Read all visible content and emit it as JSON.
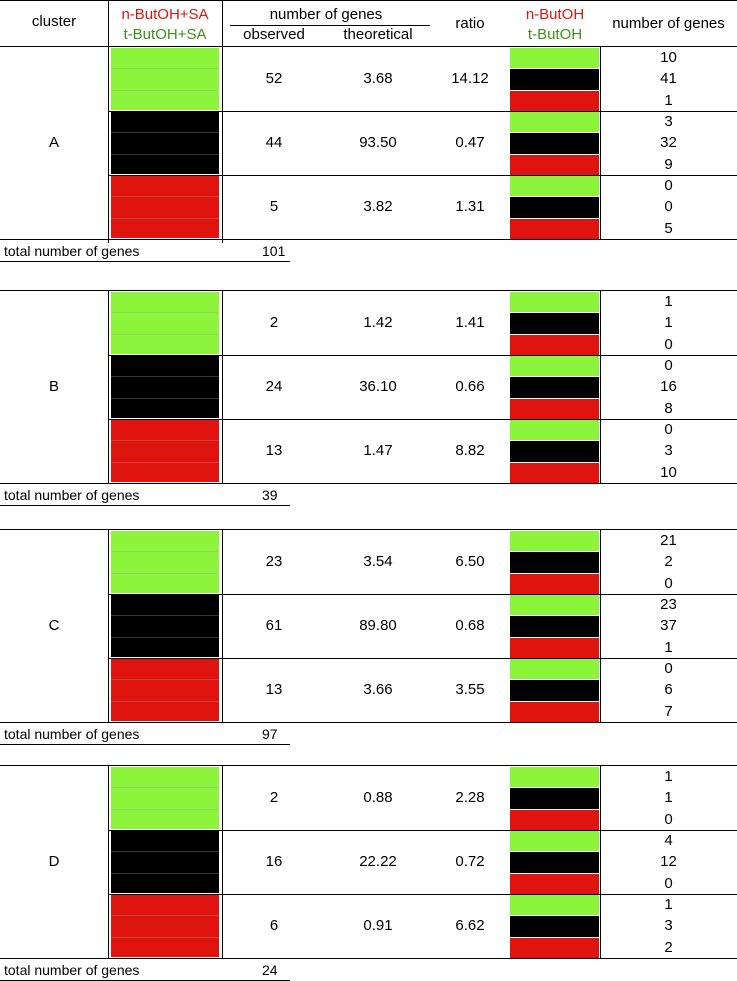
{
  "header": {
    "cluster": "cluster",
    "combo_top": "n-ButOH+SA",
    "combo_bottom": "t-ButOH+SA",
    "number_of_genes": "number of genes",
    "observed": "observed",
    "theoretical": "theoretical",
    "ratio": "ratio",
    "single_top": "n-ButOH",
    "single_bottom": "t-ButOH",
    "number_of_genes_right": "number of genes"
  },
  "colors": {
    "green": "#8cf53b",
    "black": "#000000",
    "red": "#e0140f"
  },
  "clusters": [
    {
      "name": "A",
      "total_label": "total number of genes",
      "total": "101",
      "groups": [
        {
          "color": "green",
          "observed": "52",
          "theoretical": "3.68",
          "ratio": "14.12",
          "counts": [
            "10",
            "41",
            "1"
          ]
        },
        {
          "color": "black",
          "observed": "44",
          "theoretical": "93.50",
          "ratio": "0.47",
          "counts": [
            "3",
            "32",
            "9"
          ]
        },
        {
          "color": "red",
          "observed": "5",
          "theoretical": "3.82",
          "ratio": "1.31",
          "counts": [
            "0",
            "0",
            "5"
          ]
        }
      ]
    },
    {
      "name": "B",
      "total_label": "total number of genes",
      "total": "39",
      "groups": [
        {
          "color": "green",
          "observed": "2",
          "theoretical": "1.42",
          "ratio": "1.41",
          "counts": [
            "1",
            "1",
            "0"
          ]
        },
        {
          "color": "black",
          "observed": "24",
          "theoretical": "36.10",
          "ratio": "0.66",
          "counts": [
            "0",
            "16",
            "8"
          ]
        },
        {
          "color": "red",
          "observed": "13",
          "theoretical": "1.47",
          "ratio": "8.82",
          "counts": [
            "0",
            "3",
            "10"
          ]
        }
      ]
    },
    {
      "name": "C",
      "total_label": "total number of genes",
      "total": "97",
      "groups": [
        {
          "color": "green",
          "observed": "23",
          "theoretical": "3.54",
          "ratio": "6.50",
          "counts": [
            "21",
            "2",
            "0"
          ]
        },
        {
          "color": "black",
          "observed": "61",
          "theoretical": "89.80",
          "ratio": "0.68",
          "counts": [
            "23",
            "37",
            "1"
          ]
        },
        {
          "color": "red",
          "observed": "13",
          "theoretical": "3.66",
          "ratio": "3.55",
          "counts": [
            "0",
            "6",
            "7"
          ]
        }
      ]
    },
    {
      "name": "D",
      "total_label": "total number of genes",
      "total": "24",
      "groups": [
        {
          "color": "green",
          "observed": "2",
          "theoretical": "0.88",
          "ratio": "2.28",
          "counts": [
            "1",
            "1",
            "0"
          ]
        },
        {
          "color": "black",
          "observed": "16",
          "theoretical": "22.22",
          "ratio": "0.72",
          "counts": [
            "4",
            "12",
            "0"
          ]
        },
        {
          "color": "red",
          "observed": "6",
          "theoretical": "0.91",
          "ratio": "6.62",
          "counts": [
            "1",
            "3",
            "2"
          ]
        }
      ]
    }
  ]
}
